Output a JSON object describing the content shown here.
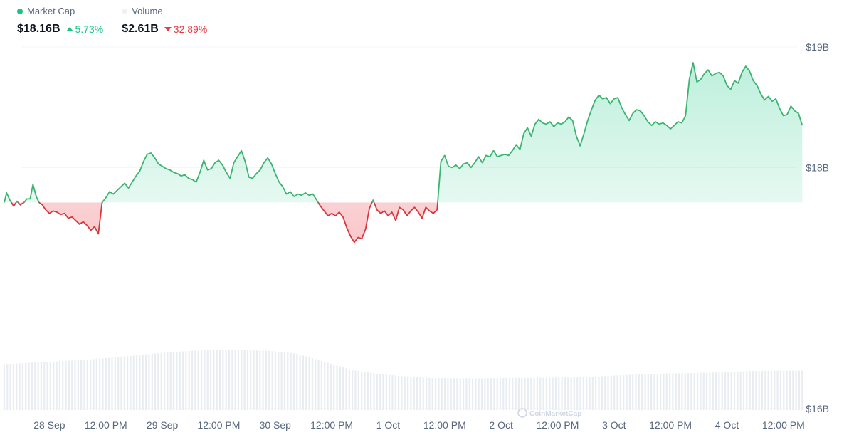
{
  "legend": {
    "market_cap": {
      "label": "Market Cap",
      "value": "$18.16B",
      "change": "5.73%",
      "direction": "up",
      "color": "#16c784"
    },
    "volume": {
      "label": "Volume",
      "value": "$2.61B",
      "change": "32.89%",
      "direction": "down",
      "color": "#eff2f5"
    }
  },
  "colors": {
    "up": "#16c784",
    "down": "#ea3943",
    "line_up": "#3cb371",
    "line_down": "#d9363e",
    "volume_bar": "#e9edf2",
    "axis_text": "#58667e"
  },
  "watermark": "CoinMarketCap",
  "chart_data": {
    "type": "line",
    "title": "",
    "x_unit": "hours since 28 Sep 00:00",
    "xlim": [
      -10.5,
      171
    ],
    "ylim": [
      16,
      19
    ],
    "y_ticks": [
      {
        "value": 19,
        "label": "$19B"
      },
      {
        "value": 18,
        "label": "$18B"
      },
      {
        "value": 16,
        "label": "$16B"
      }
    ],
    "x_ticks": [
      {
        "x": 0,
        "label": "28 Sep"
      },
      {
        "x": 12,
        "label": "12:00 PM"
      },
      {
        "x": 24,
        "label": "29 Sep"
      },
      {
        "x": 36,
        "label": "12:00 PM"
      },
      {
        "x": 48,
        "label": "30 Sep"
      },
      {
        "x": 60,
        "label": "12:00 PM"
      },
      {
        "x": 72,
        "label": "1 Oct"
      },
      {
        "x": 84,
        "label": "12:00 PM"
      },
      {
        "x": 96,
        "label": "2 Oct"
      },
      {
        "x": 108,
        "label": "12:00 PM"
      },
      {
        "x": 120,
        "label": "3 Oct"
      },
      {
        "x": 132,
        "label": "12:00 PM"
      },
      {
        "x": 144,
        "label": "4 Oct"
      },
      {
        "x": 156,
        "label": "12:00 PM"
      }
    ],
    "baseline": 17.71,
    "market_cap": {
      "name": "Market Cap",
      "points": [
        [
          -9.6,
          17.71
        ],
        [
          -9.1,
          17.79
        ],
        [
          -8.4,
          17.73
        ],
        [
          -7.6,
          17.68
        ],
        [
          -6.9,
          17.72
        ],
        [
          -6.2,
          17.69
        ],
        [
          -5.4,
          17.71
        ],
        [
          -4.8,
          17.74
        ],
        [
          -4.1,
          17.74
        ],
        [
          -3.5,
          17.86
        ],
        [
          -2.8,
          17.76
        ],
        [
          -2.2,
          17.71
        ],
        [
          -1.5,
          17.69
        ],
        [
          -0.8,
          17.65
        ],
        [
          0,
          17.62
        ],
        [
          0.8,
          17.64
        ],
        [
          1.6,
          17.63
        ],
        [
          2.4,
          17.61
        ],
        [
          3.2,
          17.62
        ],
        [
          4,
          17.58
        ],
        [
          4.8,
          17.59
        ],
        [
          5.6,
          17.56
        ],
        [
          6.4,
          17.53
        ],
        [
          7.2,
          17.55
        ],
        [
          8,
          17.52
        ],
        [
          8.8,
          17.48
        ],
        [
          9.6,
          17.51
        ],
        [
          10.4,
          17.45
        ],
        [
          11.2,
          17.71
        ],
        [
          12,
          17.75
        ],
        [
          12.8,
          17.8
        ],
        [
          13.6,
          17.78
        ],
        [
          14.4,
          17.81
        ],
        [
          15.2,
          17.84
        ],
        [
          16,
          17.87
        ],
        [
          16.8,
          17.83
        ],
        [
          17.6,
          17.88
        ],
        [
          18.4,
          17.93
        ],
        [
          19.2,
          17.97
        ],
        [
          20,
          18.05
        ],
        [
          20.8,
          18.11
        ],
        [
          21.6,
          18.12
        ],
        [
          22.4,
          18.08
        ],
        [
          23.2,
          18.03
        ],
        [
          24,
          18.01
        ],
        [
          24.8,
          17.99
        ],
        [
          25.6,
          17.98
        ],
        [
          26.4,
          17.96
        ],
        [
          27.2,
          17.95
        ],
        [
          28,
          17.93
        ],
        [
          28.8,
          17.94
        ],
        [
          29.6,
          17.91
        ],
        [
          30.4,
          17.9
        ],
        [
          31.2,
          17.88
        ],
        [
          32,
          17.96
        ],
        [
          32.8,
          18.06
        ],
        [
          33.6,
          17.98
        ],
        [
          34.4,
          17.99
        ],
        [
          35.2,
          18.04
        ],
        [
          36,
          18.06
        ],
        [
          36.8,
          18.02
        ],
        [
          37.6,
          17.96
        ],
        [
          38.4,
          17.91
        ],
        [
          39.2,
          18.04
        ],
        [
          40,
          18.09
        ],
        [
          40.8,
          18.14
        ],
        [
          41.6,
          18.05
        ],
        [
          42.4,
          17.92
        ],
        [
          43.2,
          17.91
        ],
        [
          44,
          17.95
        ],
        [
          44.8,
          17.98
        ],
        [
          45.6,
          18.04
        ],
        [
          46.4,
          18.08
        ],
        [
          47.2,
          18.03
        ],
        [
          48,
          17.95
        ],
        [
          48.8,
          17.88
        ],
        [
          49.6,
          17.84
        ],
        [
          50.4,
          17.78
        ],
        [
          51.2,
          17.8
        ],
        [
          52,
          17.76
        ],
        [
          52.8,
          17.78
        ],
        [
          53.6,
          17.77
        ],
        [
          54.4,
          17.79
        ],
        [
          55.2,
          17.77
        ],
        [
          56,
          17.78
        ],
        [
          56.8,
          17.73
        ],
        [
          57.6,
          17.68
        ],
        [
          58.4,
          17.64
        ],
        [
          59.2,
          17.6
        ],
        [
          60,
          17.62
        ],
        [
          60.8,
          17.6
        ],
        [
          61.6,
          17.63
        ],
        [
          62.4,
          17.59
        ],
        [
          63.2,
          17.5
        ],
        [
          64,
          17.43
        ],
        [
          64.8,
          17.38
        ],
        [
          65.6,
          17.42
        ],
        [
          66.4,
          17.41
        ],
        [
          67.2,
          17.49
        ],
        [
          68,
          17.66
        ],
        [
          68.8,
          17.73
        ],
        [
          69.6,
          17.65
        ],
        [
          70.4,
          17.62
        ],
        [
          71.2,
          17.64
        ],
        [
          72,
          17.6
        ],
        [
          72.8,
          17.63
        ],
        [
          73.6,
          17.56
        ],
        [
          74.4,
          17.67
        ],
        [
          75.2,
          17.65
        ],
        [
          76,
          17.6
        ],
        [
          76.8,
          17.64
        ],
        [
          77.6,
          17.67
        ],
        [
          78.4,
          17.63
        ],
        [
          79.2,
          17.58
        ],
        [
          80,
          17.67
        ],
        [
          80.8,
          17.64
        ],
        [
          81.6,
          17.62
        ],
        [
          82.4,
          17.65
        ],
        [
          83.2,
          18.05
        ],
        [
          84,
          18.1
        ],
        [
          84.8,
          18.01
        ],
        [
          85.6,
          18.0
        ],
        [
          86.4,
          18.02
        ],
        [
          87.2,
          17.99
        ],
        [
          88,
          18.03
        ],
        [
          88.8,
          18.04
        ],
        [
          89.6,
          18.0
        ],
        [
          90.4,
          18.04
        ],
        [
          91.2,
          18.09
        ],
        [
          92,
          18.04
        ],
        [
          92.8,
          18.1
        ],
        [
          93.6,
          18.09
        ],
        [
          94.4,
          18.14
        ],
        [
          95.2,
          18.09
        ],
        [
          96,
          18.1
        ],
        [
          96.8,
          18.11
        ],
        [
          97.6,
          18.1
        ],
        [
          98.4,
          18.14
        ],
        [
          99.2,
          18.19
        ],
        [
          100,
          18.15
        ],
        [
          100.8,
          18.28
        ],
        [
          101.6,
          18.33
        ],
        [
          102.4,
          18.26
        ],
        [
          103.2,
          18.36
        ],
        [
          104,
          18.4
        ],
        [
          104.8,
          18.37
        ],
        [
          105.6,
          18.36
        ],
        [
          106.4,
          18.38
        ],
        [
          107.2,
          18.34
        ],
        [
          108,
          18.37
        ],
        [
          108.8,
          18.36
        ],
        [
          109.6,
          18.38
        ],
        [
          110.4,
          18.42
        ],
        [
          111.2,
          18.39
        ],
        [
          112,
          18.26
        ],
        [
          112.8,
          18.18
        ],
        [
          113.6,
          18.28
        ],
        [
          114.4,
          18.39
        ],
        [
          115.2,
          18.48
        ],
        [
          116,
          18.56
        ],
        [
          116.8,
          18.6
        ],
        [
          117.6,
          18.57
        ],
        [
          118.4,
          18.58
        ],
        [
          119.2,
          18.53
        ],
        [
          120,
          18.57
        ],
        [
          120.8,
          18.58
        ],
        [
          121.6,
          18.5
        ],
        [
          122.4,
          18.44
        ],
        [
          123.2,
          18.39
        ],
        [
          124,
          18.45
        ],
        [
          124.8,
          18.48
        ],
        [
          125.6,
          18.47
        ],
        [
          126.4,
          18.43
        ],
        [
          127.2,
          18.38
        ],
        [
          128,
          18.35
        ],
        [
          128.8,
          18.38
        ],
        [
          129.6,
          18.36
        ],
        [
          130.4,
          18.37
        ],
        [
          131.2,
          18.35
        ],
        [
          132,
          18.32
        ],
        [
          132.8,
          18.35
        ],
        [
          133.6,
          18.38
        ],
        [
          134.4,
          18.37
        ],
        [
          135.2,
          18.43
        ],
        [
          136,
          18.73
        ],
        [
          136.8,
          18.87
        ],
        [
          137.6,
          18.71
        ],
        [
          138.4,
          18.73
        ],
        [
          139.2,
          18.78
        ],
        [
          140,
          18.81
        ],
        [
          140.8,
          18.76
        ],
        [
          141.6,
          18.78
        ],
        [
          142.4,
          18.79
        ],
        [
          143.2,
          18.76
        ],
        [
          144,
          18.68
        ],
        [
          144.8,
          18.65
        ],
        [
          145.6,
          18.72
        ],
        [
          146.4,
          18.7
        ],
        [
          147.2,
          18.79
        ],
        [
          148,
          18.84
        ],
        [
          148.8,
          18.8
        ],
        [
          149.6,
          18.72
        ],
        [
          150.4,
          18.68
        ],
        [
          151.2,
          18.61
        ],
        [
          152,
          18.56
        ],
        [
          152.8,
          18.59
        ],
        [
          153.6,
          18.55
        ],
        [
          154.4,
          18.57
        ],
        [
          155.2,
          18.49
        ],
        [
          156,
          18.43
        ],
        [
          156.8,
          18.44
        ],
        [
          157.6,
          18.51
        ],
        [
          158.4,
          18.47
        ],
        [
          159.2,
          18.45
        ],
        [
          160,
          18.35
        ]
      ]
    },
    "volume": {
      "name": "Volume",
      "ylim": [
        0,
        3.2
      ],
      "values": [
        1.14,
        1.18,
        1.21,
        1.25,
        1.3,
        1.36,
        1.43,
        1.47,
        1.5,
        1.49,
        1.47,
        1.4,
        1.21,
        1.01,
        0.9,
        0.84,
        0.8,
        0.79,
        0.79,
        0.8,
        0.8,
        0.81,
        0.82,
        0.86,
        0.89,
        0.91,
        0.92,
        0.94,
        0.97,
        0.98,
        0.98
      ]
    }
  }
}
